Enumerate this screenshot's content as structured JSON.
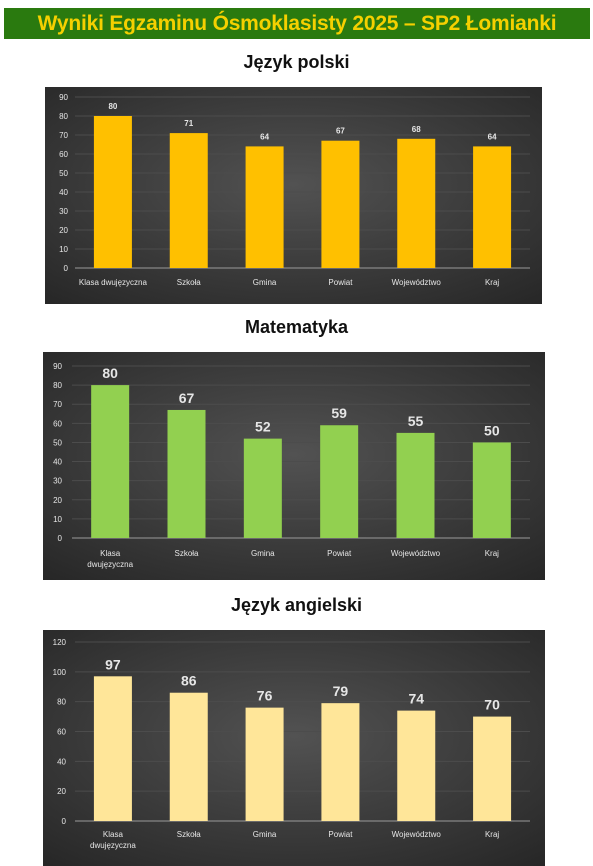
{
  "header": {
    "title": "Wyniki Egzaminu Ósmoklasisty 2025 – SP2 Łomianki"
  },
  "colors": {
    "banner_bg": "#2a7a0f",
    "banner_text": "#f5d000",
    "polski": "#ffc000",
    "matematyka": "#92d050",
    "angielski": "#ffe699"
  },
  "chart_data": [
    {
      "type": "bar",
      "title": "Język polski",
      "categories": [
        "Klasa dwujęzyczna",
        "Szkoła",
        "Gmina",
        "Powiat",
        "Województwo",
        "Kraj"
      ],
      "values": [
        80,
        71,
        64,
        67,
        68,
        64
      ],
      "ylim": [
        0,
        90
      ],
      "yticks": [
        0,
        10,
        20,
        30,
        40,
        50,
        60,
        70,
        80,
        90
      ],
      "grid": true,
      "legend": "none",
      "color": "#ffc000"
    },
    {
      "type": "bar",
      "title": "Matematyka",
      "categories": [
        "Klasa dwujęzyczna",
        "Szkoła",
        "Gmina",
        "Powiat",
        "Województwo",
        "Kraj"
      ],
      "values": [
        80,
        67,
        52,
        59,
        55,
        50
      ],
      "ylim": [
        0,
        90
      ],
      "yticks": [
        0,
        10,
        20,
        30,
        40,
        50,
        60,
        70,
        80,
        90
      ],
      "grid": true,
      "legend": "none",
      "color": "#92d050"
    },
    {
      "type": "bar",
      "title": "Język angielski",
      "categories": [
        "Klasa dwujęzyczna",
        "Szkoła",
        "Gmina",
        "Powiat",
        "Województwo",
        "Kraj"
      ],
      "values": [
        97,
        86,
        76,
        79,
        74,
        70
      ],
      "ylim": [
        0,
        120
      ],
      "yticks": [
        0,
        20,
        40,
        60,
        80,
        100,
        120
      ],
      "grid": true,
      "legend": "none",
      "color": "#ffe699"
    }
  ]
}
